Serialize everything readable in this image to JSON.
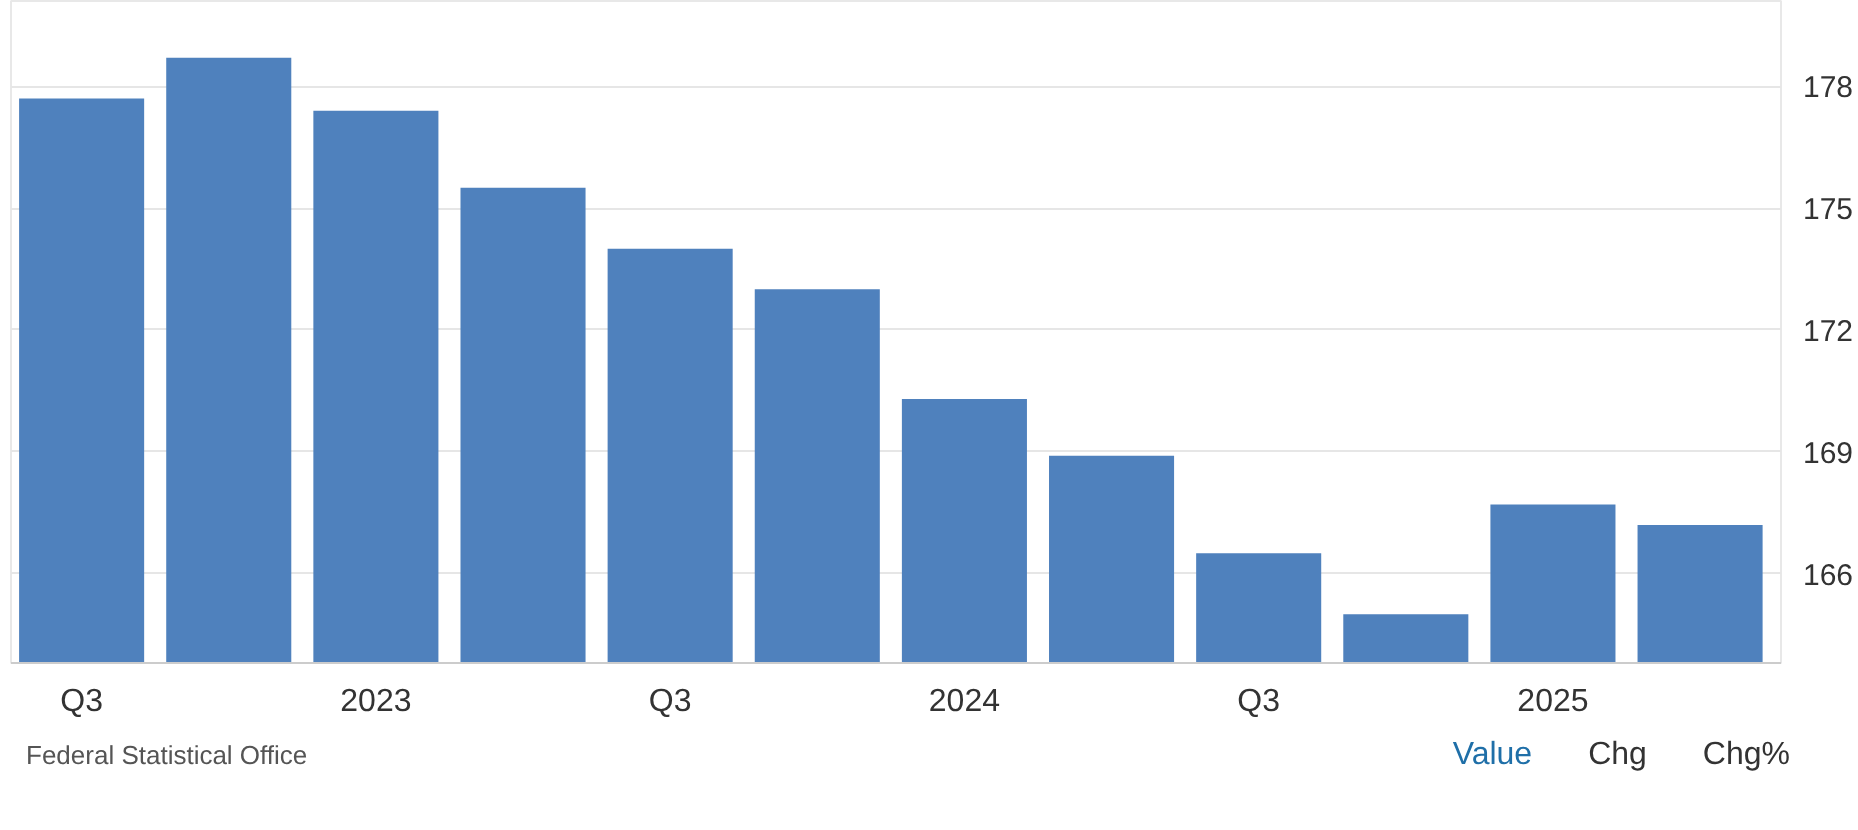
{
  "chart_data": {
    "type": "bar",
    "categories": [
      "Q3",
      null,
      "2023",
      null,
      "Q3",
      null,
      "2024",
      null,
      "Q3",
      null,
      "2025",
      null
    ],
    "values": [
      177.7,
      178.7,
      177.4,
      175.5,
      174.0,
      173.0,
      170.3,
      168.9,
      166.5,
      165.0,
      167.7,
      167.2
    ],
    "color": "#4f81bd",
    "ylim": [
      163.8,
      180.1
    ],
    "yticks": [
      166,
      169,
      172,
      175,
      178
    ],
    "grid": "y",
    "annotations": [
      "Federal Statistical Office",
      "Value",
      "Chg",
      "Chg%"
    ]
  }
}
